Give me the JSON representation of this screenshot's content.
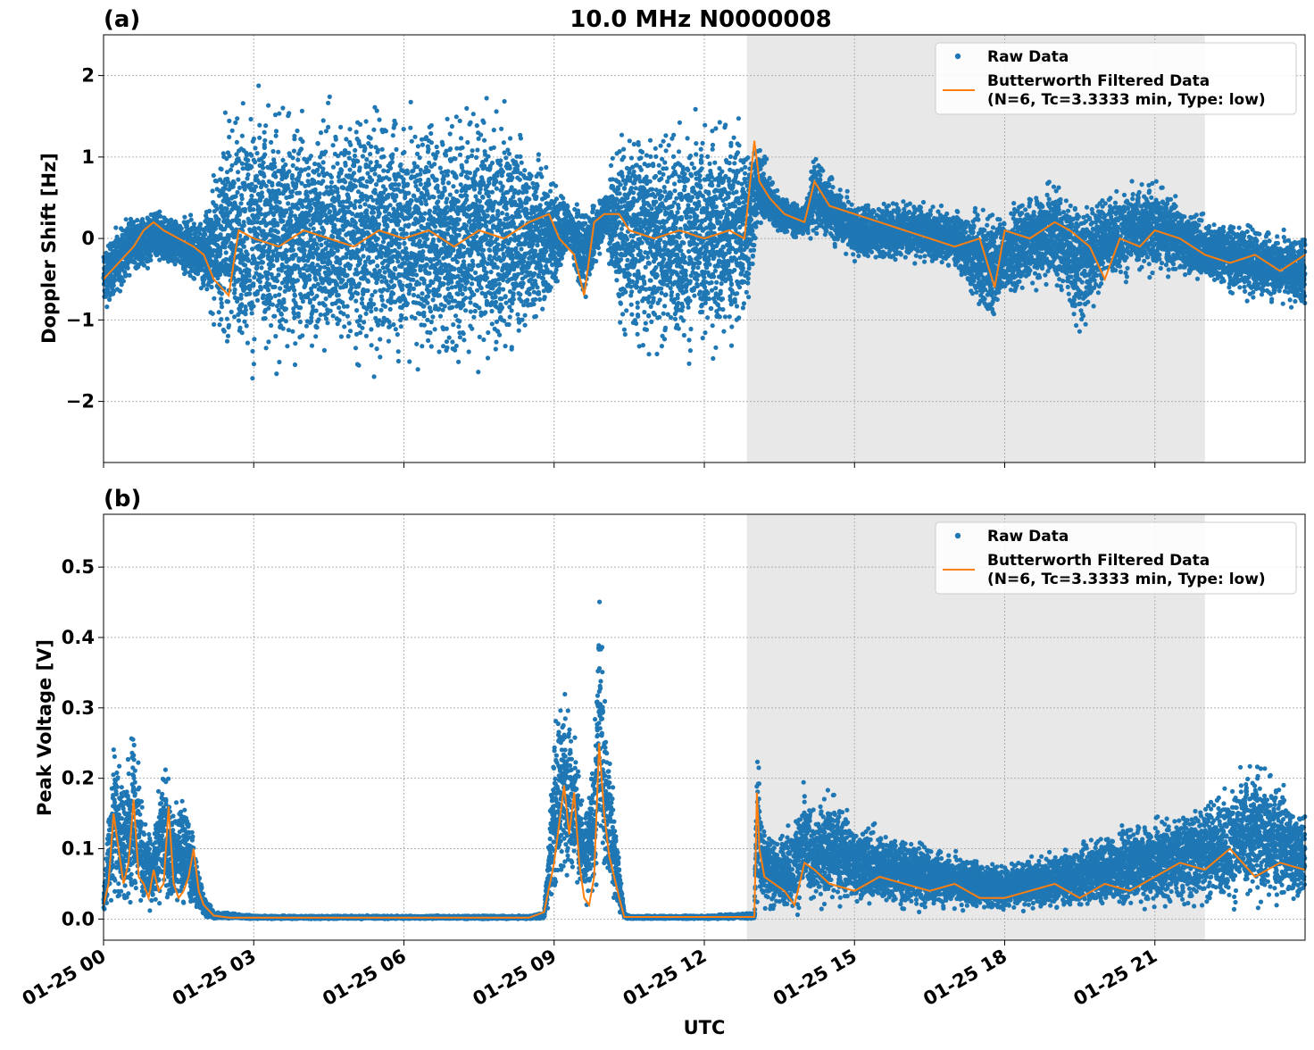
{
  "figure": {
    "title": "10.0 MHz N0000008",
    "xlabel": "UTC"
  },
  "legend": {
    "raw_label": "Raw Data",
    "filtered_label_line1": "Butterworth Filtered Data",
    "filtered_label_line2": "(N=6, Tc=3.3333 min, Type: low)"
  },
  "colors": {
    "raw": "#1f77b4",
    "filtered": "#ff7f0e",
    "shade": "#e8e8e8",
    "grid": "#b0b0b0"
  },
  "chart_data": [
    {
      "panel": "(a)",
      "type": "scatter",
      "ylabel": "Doppler Shift [Hz]",
      "xlim_hours": [
        0,
        24
      ],
      "ylim": [
        -2.75,
        2.5
      ],
      "shaded_span_hours": [
        12.85,
        22.0
      ],
      "x_tick_labels": [
        "01-25 00",
        "01-25 03",
        "01-25 06",
        "01-25 09",
        "01-25 12",
        "01-25 15",
        "01-25 18",
        "01-25 21"
      ],
      "y_ticks": [
        {
          "value": 2,
          "label": "2"
        },
        {
          "value": 1,
          "label": "1"
        },
        {
          "value": 0,
          "label": "0"
        },
        {
          "value": -1,
          "label": "−1"
        },
        {
          "value": -2,
          "label": "−2"
        }
      ],
      "series": [
        {
          "name": "Raw Data",
          "style": "points",
          "envelope_hours": [
            0,
            0.5,
            1,
            1.5,
            2,
            2.5,
            3,
            4,
            5,
            6,
            7,
            8,
            8.9,
            9.3,
            9.6,
            10,
            10.4,
            11,
            12,
            12.8,
            13.1,
            13.5,
            14,
            14.2,
            15,
            16,
            17,
            17.7,
            18,
            19,
            19.5,
            20,
            21,
            22,
            23,
            24
          ],
          "envelope_min": [
            -1.0,
            -0.5,
            -0.4,
            -0.4,
            -0.8,
            -1.6,
            -1.8,
            -1.7,
            -1.7,
            -1.7,
            -1.7,
            -1.7,
            -1.0,
            -0.2,
            -0.9,
            0.0,
            -1.5,
            -1.6,
            -1.6,
            -1.4,
            0.1,
            0.0,
            0.0,
            0.0,
            -0.3,
            -0.3,
            -0.4,
            -1.2,
            -0.8,
            -0.6,
            -1.3,
            -0.6,
            -0.5,
            -0.6,
            -0.8,
            -0.9
          ],
          "envelope_max": [
            0.0,
            0.3,
            0.4,
            0.3,
            0.4,
            1.8,
            1.9,
            1.8,
            1.8,
            1.8,
            1.8,
            1.8,
            1.0,
            0.5,
            0.4,
            0.6,
            1.7,
            1.6,
            1.6,
            1.7,
            1.2,
            0.6,
            0.4,
            1.1,
            0.5,
            0.5,
            0.4,
            0.5,
            0.4,
            0.8,
            0.6,
            0.6,
            0.8,
            0.3,
            0.2,
            0.1
          ]
        },
        {
          "name": "Butterworth Filtered Data\n(N=6, Tc=3.3333 min, Type: low)",
          "style": "line",
          "x_hours": [
            0,
            0.3,
            0.6,
            0.8,
            1.0,
            1.2,
            1.5,
            1.8,
            2.0,
            2.2,
            2.5,
            2.7,
            3.0,
            3.5,
            4.0,
            4.5,
            5.0,
            5.5,
            6.0,
            6.5,
            7.0,
            7.5,
            8.0,
            8.5,
            8.9,
            9.1,
            9.4,
            9.6,
            9.8,
            10.0,
            10.3,
            10.5,
            11.0,
            11.5,
            12.0,
            12.5,
            12.8,
            13.0,
            13.1,
            13.3,
            13.6,
            14.0,
            14.2,
            14.5,
            15.0,
            15.5,
            16.0,
            16.5,
            17.0,
            17.5,
            17.8,
            18.0,
            18.5,
            19.0,
            19.3,
            19.7,
            20.0,
            20.3,
            20.7,
            21.0,
            21.5,
            22.0,
            22.5,
            23.0,
            23.5,
            24.0
          ],
          "y": [
            -0.5,
            -0.3,
            -0.1,
            0.1,
            0.2,
            0.1,
            0.0,
            -0.1,
            -0.2,
            -0.5,
            -0.7,
            0.1,
            0.0,
            -0.1,
            0.1,
            0.0,
            -0.1,
            0.1,
            0.0,
            0.1,
            -0.1,
            0.1,
            0.0,
            0.2,
            0.3,
            0.0,
            -0.2,
            -0.7,
            0.2,
            0.3,
            0.3,
            0.1,
            0.0,
            0.1,
            0.0,
            0.1,
            0.0,
            1.2,
            0.7,
            0.5,
            0.3,
            0.2,
            0.7,
            0.4,
            0.3,
            0.2,
            0.1,
            0.0,
            -0.1,
            0.0,
            -0.6,
            0.1,
            0.0,
            0.2,
            0.1,
            -0.1,
            -0.5,
            0.0,
            -0.1,
            0.1,
            0.0,
            -0.2,
            -0.3,
            -0.2,
            -0.4,
            -0.2
          ]
        }
      ]
    },
    {
      "panel": "(b)",
      "type": "scatter",
      "ylabel": "Peak Voltage [V]",
      "xlim_hours": [
        0,
        24
      ],
      "ylim": [
        -0.03,
        0.575
      ],
      "shaded_span_hours": [
        12.85,
        22.0
      ],
      "x_tick_labels": [
        "01-25 00",
        "01-25 03",
        "01-25 06",
        "01-25 09",
        "01-25 12",
        "01-25 15",
        "01-25 18",
        "01-25 21"
      ],
      "y_ticks": [
        {
          "value": 0.5,
          "label": "0.5"
        },
        {
          "value": 0.4,
          "label": "0.4"
        },
        {
          "value": 0.3,
          "label": "0.3"
        },
        {
          "value": 0.2,
          "label": "0.2"
        },
        {
          "value": 0.1,
          "label": "0.1"
        },
        {
          "value": 0.0,
          "label": "0.0"
        }
      ],
      "series": [
        {
          "name": "Raw Data",
          "style": "points",
          "envelope_hours": [
            0,
            0.2,
            0.4,
            0.6,
            0.8,
            1.0,
            1.2,
            1.4,
            1.6,
            1.8,
            2.0,
            2.2,
            2.5,
            3.0,
            6.0,
            8.5,
            8.8,
            9.0,
            9.2,
            9.4,
            9.6,
            9.8,
            9.9,
            10.0,
            10.2,
            10.4,
            10.5,
            12.0,
            13.0,
            13.05,
            13.15,
            13.4,
            13.8,
            14.0,
            14.2,
            14.5,
            15.0,
            16.0,
            17.0,
            18.0,
            19.0,
            20.0,
            21.0,
            22.0,
            22.5,
            23.0,
            23.5,
            24.0
          ],
          "envelope_min": [
            0.0,
            0.01,
            0.01,
            0.01,
            0.01,
            0.01,
            0.01,
            0.01,
            0.01,
            0.01,
            0.0,
            0.0,
            0.0,
            0.0,
            0.0,
            0.0,
            0.0,
            0.02,
            0.05,
            0.04,
            0.02,
            0.01,
            0.05,
            0.05,
            0.01,
            0.0,
            0.0,
            0.0,
            0.0,
            0.01,
            0.01,
            0.0,
            0.0,
            0.01,
            0.01,
            0.01,
            0.01,
            0.01,
            0.01,
            0.01,
            0.01,
            0.01,
            0.01,
            0.01,
            0.01,
            0.01,
            0.01,
            0.01
          ],
          "envelope_max": [
            0.05,
            0.29,
            0.2,
            0.31,
            0.15,
            0.12,
            0.26,
            0.16,
            0.2,
            0.12,
            0.04,
            0.01,
            0.01,
            0.005,
            0.005,
            0.005,
            0.01,
            0.3,
            0.35,
            0.28,
            0.15,
            0.25,
            0.55,
            0.34,
            0.17,
            0.01,
            0.005,
            0.005,
            0.01,
            0.3,
            0.15,
            0.12,
            0.15,
            0.2,
            0.16,
            0.2,
            0.15,
            0.12,
            0.1,
            0.08,
            0.1,
            0.13,
            0.15,
            0.18,
            0.2,
            0.24,
            0.21,
            0.16
          ]
        },
        {
          "name": "Butterworth Filtered Data\n(N=6, Tc=3.3333 min, Type: low)",
          "style": "line",
          "x_hours": [
            0,
            0.1,
            0.2,
            0.3,
            0.4,
            0.5,
            0.6,
            0.7,
            0.8,
            0.9,
            1.0,
            1.1,
            1.2,
            1.3,
            1.4,
            1.5,
            1.6,
            1.7,
            1.8,
            1.9,
            2.0,
            2.2,
            2.5,
            3.0,
            6.0,
            8.5,
            8.8,
            9.0,
            9.2,
            9.3,
            9.4,
            9.5,
            9.6,
            9.7,
            9.8,
            9.9,
            10.0,
            10.1,
            10.2,
            10.3,
            10.4,
            10.5,
            12.0,
            13.0,
            13.05,
            13.1,
            13.2,
            13.4,
            13.6,
            13.8,
            14.0,
            14.2,
            14.5,
            15.0,
            15.5,
            16.0,
            16.5,
            17.0,
            17.5,
            18.0,
            18.5,
            19.0,
            19.5,
            20.0,
            20.5,
            21.0,
            21.5,
            22.0,
            22.5,
            23.0,
            23.5,
            24.0
          ],
          "y": [
            0.02,
            0.05,
            0.15,
            0.1,
            0.05,
            0.08,
            0.17,
            0.06,
            0.05,
            0.03,
            0.07,
            0.04,
            0.05,
            0.16,
            0.05,
            0.03,
            0.04,
            0.06,
            0.1,
            0.04,
            0.02,
            0.005,
            0.002,
            0.002,
            0.002,
            0.002,
            0.01,
            0.08,
            0.19,
            0.12,
            0.18,
            0.08,
            0.03,
            0.02,
            0.06,
            0.25,
            0.15,
            0.09,
            0.06,
            0.03,
            0.003,
            0.003,
            0.003,
            0.003,
            0.18,
            0.1,
            0.06,
            0.05,
            0.04,
            0.02,
            0.08,
            0.07,
            0.05,
            0.04,
            0.06,
            0.05,
            0.04,
            0.05,
            0.03,
            0.03,
            0.04,
            0.05,
            0.03,
            0.05,
            0.04,
            0.06,
            0.08,
            0.07,
            0.1,
            0.06,
            0.08,
            0.07
          ]
        }
      ]
    }
  ]
}
